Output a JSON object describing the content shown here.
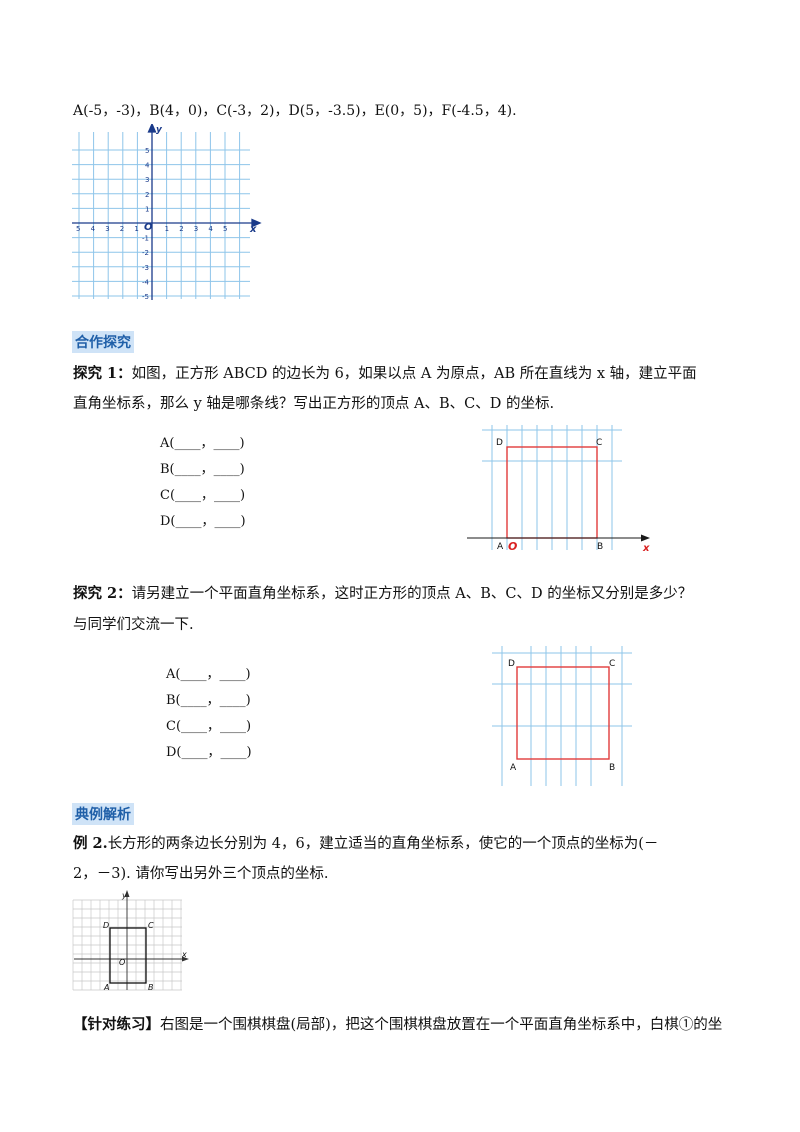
{
  "points_line": "A(-5，-3)，B(4，0)，C(-3，2)，D(5，-3.5)，E(0，5)，F(-4.5，4).",
  "grid1": {
    "x_ticks_neg": [
      "5",
      "4",
      "3",
      "2",
      "1"
    ],
    "x_ticks_pos": [
      "1",
      "2",
      "3",
      "4",
      "5"
    ],
    "y_ticks_pos": [
      "5",
      "4",
      "3",
      "2",
      "1"
    ],
    "y_ticks_neg": [
      "-1",
      "-2",
      "-3",
      "-4",
      "-5"
    ],
    "origin": "O",
    "x_label": "x",
    "y_label": "y"
  },
  "section1": {
    "heading": "合作探究"
  },
  "explore1": {
    "label": "探究 1：",
    "text1": "如图，正方形 ABCD 的边长为 6，如果以点 A 为原点，AB 所在直线为 x 轴，建立平面",
    "text2": "直角坐标系，那么 y 轴是哪条线？写出正方形的顶点 A、B、C、D 的坐标.",
    "blanks": [
      "A(____，____)",
      "B(____，____)",
      "C(____，____)",
      "D(____，____)"
    ],
    "fig": {
      "A": "A",
      "B": "B",
      "C": "C",
      "D": "D",
      "O": "O",
      "x": "x"
    }
  },
  "explore2": {
    "label": "探究 2：",
    "text1": "请另建立一个平面直角坐标系，这时正方形的顶点 A、B、C、D 的坐标又分别是多少？",
    "text2": "与同学们交流一下.",
    "blanks": [
      "A(____，____)",
      "B(____，____)",
      "C(____，____)",
      "D(____，____)"
    ],
    "fig": {
      "A": "A",
      "B": "B",
      "C": "C",
      "D": "D"
    }
  },
  "section2": {
    "heading": "典例解析"
  },
  "example2": {
    "label": "例 2.",
    "text1": "长方形的两条边长分别为 4，6，建立适当的直角坐标系，使它的一个顶点的坐标为(－",
    "text2": "2，－3). 请你写出另外三个顶点的坐标.",
    "fig": {
      "A": "A",
      "B": "B",
      "C": "C",
      "D": "D",
      "O": "O",
      "x": "x",
      "y": "y"
    }
  },
  "practice": {
    "label": "【针对练习】",
    "text": "右图是一个围棋棋盘(局部)，把这个围棋棋盘放置在一个平面直角坐标系中，白棋①的坐"
  }
}
